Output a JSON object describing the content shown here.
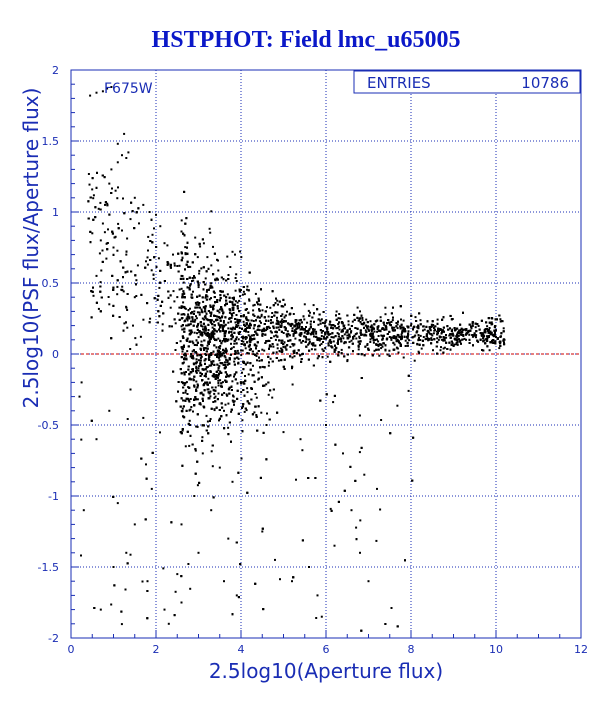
{
  "chart_data": {
    "type": "scatter",
    "title": "HSTPHOT: Field lmc_u65005",
    "xlabel": "2.5log10(Aperture flux)",
    "ylabel": "2.5log10(PSF flux/Aperture flux)",
    "xlim": [
      0,
      12
    ],
    "ylim": [
      -2,
      2
    ],
    "x_ticks": [
      "0",
      "2",
      "4",
      "6",
      "8",
      "10",
      "12"
    ],
    "y_ticks": [
      "-2",
      "-1.5",
      "-1",
      "-0.5",
      "0",
      "0.5",
      "1",
      "1.5",
      "2"
    ],
    "grid": true,
    "reference_line": {
      "y": 0,
      "style": "dashed",
      "color": "#cc0000"
    },
    "filter_label": "F675W",
    "stats": {
      "label": "ENTRIES",
      "value": "10786"
    },
    "entries": 10786,
    "points": [
      [
        0.45,
        1.82
      ],
      [
        0.6,
        1.84
      ],
      [
        0.75,
        1.85
      ],
      [
        0.85,
        1.87
      ],
      [
        0.95,
        1.88
      ],
      [
        1.1,
        1.48
      ],
      [
        1.25,
        1.55
      ],
      [
        1.2,
        1.4
      ],
      [
        1.3,
        1.38
      ],
      [
        1.1,
        1.35
      ],
      [
        0.95,
        1.3
      ],
      [
        1.35,
        1.42
      ],
      [
        0.9,
        1.2
      ],
      [
        1.05,
        1.15
      ],
      [
        0.8,
        1.05
      ],
      [
        1.5,
        1.1
      ],
      [
        1.7,
        1.05
      ],
      [
        1.85,
        1.0
      ],
      [
        2.0,
        0.98
      ],
      [
        1.4,
        0.95
      ],
      [
        1.6,
        0.92
      ],
      [
        2.1,
        0.9
      ],
      [
        0.5,
        0.85
      ],
      [
        0.7,
        0.8
      ],
      [
        1.0,
        0.75
      ],
      [
        1.3,
        0.7
      ],
      [
        1.8,
        0.68
      ],
      [
        2.2,
        0.78
      ],
      [
        2.4,
        0.7
      ],
      [
        2.5,
        0.62
      ],
      [
        0.6,
        0.55
      ],
      [
        1.2,
        0.45
      ],
      [
        1.5,
        0.4
      ],
      [
        0.9,
        0.35
      ],
      [
        2.6,
        0.55
      ],
      [
        2.8,
        0.48
      ],
      [
        3.0,
        0.5
      ],
      [
        3.2,
        0.45
      ],
      [
        3.4,
        0.52
      ],
      [
        3.8,
        0.72
      ],
      [
        2.9,
        0.3
      ],
      [
        3.1,
        0.25
      ],
      [
        3.3,
        0.22
      ],
      [
        3.5,
        0.2
      ],
      [
        3.7,
        0.18
      ],
      [
        3.9,
        0.19
      ],
      [
        4.1,
        0.2
      ],
      [
        4.3,
        0.18
      ],
      [
        4.5,
        0.17
      ],
      [
        4.7,
        0.16
      ],
      [
        4.9,
        0.17
      ],
      [
        5.1,
        0.16
      ],
      [
        5.3,
        0.15
      ],
      [
        5.5,
        0.15
      ],
      [
        5.7,
        0.14
      ],
      [
        5.9,
        0.15
      ],
      [
        6.1,
        0.14
      ],
      [
        6.3,
        0.14
      ],
      [
        6.5,
        0.13
      ],
      [
        6.7,
        0.14
      ],
      [
        6.9,
        0.13
      ],
      [
        7.1,
        0.13
      ],
      [
        7.3,
        0.13
      ],
      [
        7.5,
        0.12
      ],
      [
        7.7,
        0.13
      ],
      [
        7.9,
        0.12
      ],
      [
        8.1,
        0.13
      ],
      [
        8.3,
        0.12
      ],
      [
        8.5,
        0.13
      ],
      [
        8.7,
        0.12
      ],
      [
        8.9,
        0.13
      ],
      [
        9.1,
        0.13
      ],
      [
        9.3,
        0.14
      ],
      [
        9.5,
        0.13
      ],
      [
        9.7,
        0.14
      ],
      [
        9.9,
        0.15
      ],
      [
        10.1,
        0.12
      ],
      [
        10.2,
        0.1
      ],
      [
        3.0,
        -0.1
      ],
      [
        3.2,
        -0.2
      ],
      [
        3.4,
        -0.3
      ],
      [
        3.6,
        -0.4
      ],
      [
        2.8,
        -0.5
      ],
      [
        2.7,
        -0.65
      ],
      [
        3.1,
        -0.7
      ],
      [
        3.5,
        -0.8
      ],
      [
        3.8,
        -0.9
      ],
      [
        2.9,
        -1.0
      ],
      [
        3.3,
        -1.1
      ],
      [
        2.6,
        -1.2
      ],
      [
        3.7,
        -1.3
      ],
      [
        3.0,
        -1.4
      ],
      [
        2.5,
        -1.55
      ],
      [
        3.6,
        -1.6
      ],
      [
        3.9,
        -1.7
      ],
      [
        2.2,
        -1.8
      ],
      [
        2.3,
        -1.9
      ],
      [
        2.6,
        -1.75
      ],
      [
        4.2,
        -0.35
      ],
      [
        4.6,
        -0.5
      ],
      [
        5.0,
        -0.55
      ],
      [
        5.4,
        -0.6
      ],
      [
        6.0,
        -0.5
      ],
      [
        6.4,
        -0.7
      ],
      [
        6.9,
        -0.85
      ],
      [
        7.2,
        -0.95
      ],
      [
        6.6,
        -1.1
      ],
      [
        6.8,
        -1.4
      ],
      [
        7.0,
        -1.6
      ],
      [
        6.2,
        -1.35
      ],
      [
        5.6,
        -1.5
      ],
      [
        5.8,
        -1.7
      ],
      [
        4.5,
        -1.25
      ],
      [
        4.8,
        -1.45
      ],
      [
        5.2,
        -1.6
      ],
      [
        5.9,
        -1.85
      ],
      [
        1.0,
        -1.5
      ],
      [
        1.3,
        -1.4
      ],
      [
        1.5,
        -1.2
      ],
      [
        1.1,
        -1.05
      ],
      [
        0.6,
        -0.6
      ],
      [
        0.9,
        -0.4
      ],
      [
        1.4,
        -0.25
      ],
      [
        1.7,
        -0.45
      ],
      [
        0.3,
        -1.1
      ],
      [
        0.2,
        -0.3
      ],
      [
        1.9,
        -0.95
      ],
      [
        1.8,
        -1.6
      ],
      [
        0.7,
        -1.8
      ],
      [
        4.0,
        0.45
      ],
      [
        4.4,
        0.35
      ],
      [
        5.5,
        0.35
      ],
      [
        6.8,
        0.3
      ],
      [
        7.4,
        0.28
      ],
      [
        8.0,
        0.2
      ],
      [
        4.3,
        -0.15
      ],
      [
        5.2,
        -0.1
      ],
      [
        6.5,
        -0.05
      ]
    ]
  }
}
